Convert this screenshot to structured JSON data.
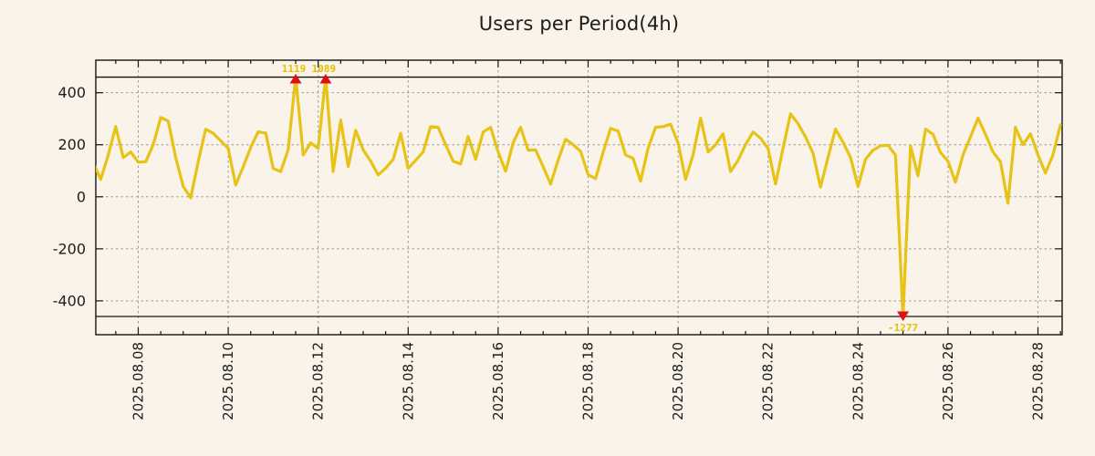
{
  "title": "Users per Period(4h)",
  "chart_data": {
    "type": "line",
    "title": "Users per Period(4h)",
    "series_name": "users-per-4h",
    "start_time": "2025-08-07 00:00",
    "interval_hours": 4,
    "values": [
      130,
      67,
      160,
      270,
      151,
      172,
      133,
      135,
      200,
      305,
      291,
      150,
      40,
      -4,
      135,
      260,
      244,
      215,
      186,
      45,
      115,
      190,
      250,
      245,
      109,
      97,
      180,
      1119,
      161,
      207,
      186,
      1089,
      97,
      295,
      116,
      256,
      180,
      137,
      84,
      110,
      144,
      244,
      109,
      140,
      172,
      270,
      267,
      200,
      137,
      126,
      232,
      144,
      249,
      267,
      172,
      98,
      207,
      267,
      179,
      180,
      116,
      49,
      140,
      221,
      200,
      175,
      85,
      70,
      170,
      263,
      253,
      161,
      148,
      60,
      186,
      267,
      270,
      279,
      207,
      67,
      161,
      302,
      172,
      200,
      242,
      97,
      140,
      200,
      249,
      225,
      186,
      49,
      186,
      319,
      281,
      230,
      168,
      37,
      151,
      260,
      210,
      151,
      39,
      144,
      179,
      196,
      198,
      160,
      -1277,
      196,
      81,
      260,
      240,
      170,
      137,
      56,
      161,
      230,
      302,
      240,
      172,
      135,
      -25,
      267,
      200,
      242,
      161,
      91,
      161,
      277
    ],
    "x_tick_labels": [
      "2025.08.08",
      "2025.08.10",
      "2025.08.12",
      "2025.08.14",
      "2025.08.16",
      "2025.08.18",
      "2025.08.20",
      "2025.08.22",
      "2025.08.24",
      "2025.08.26",
      "2025.08.28"
    ],
    "x_tick_interval_days": 2,
    "minor_tick_hours": 12,
    "y_ticks": [
      400,
      200,
      0,
      -200,
      -400
    ],
    "ylim": [
      -530,
      525
    ],
    "clip_lines": [
      460,
      -460
    ],
    "grid": true,
    "legend": "none",
    "annotations": [
      {
        "label": "1119",
        "value": 1119,
        "point_index": 27,
        "type": "clipped-max",
        "marker": "triangle-up"
      },
      {
        "label": "1089",
        "value": 1089,
        "point_index": 31,
        "type": "clipped-max",
        "marker": "triangle-up"
      },
      {
        "label": "-1277",
        "value": -1277,
        "point_index": 108,
        "type": "clipped-min",
        "marker": "triangle-down"
      }
    ],
    "colors": {
      "background": "#faf3ea",
      "line": "#e6c316",
      "marker": "#dd1111",
      "annotation_text": "#e3c000",
      "grid": "#999999",
      "axis": "#141414",
      "text": "#1c1c1c"
    }
  }
}
